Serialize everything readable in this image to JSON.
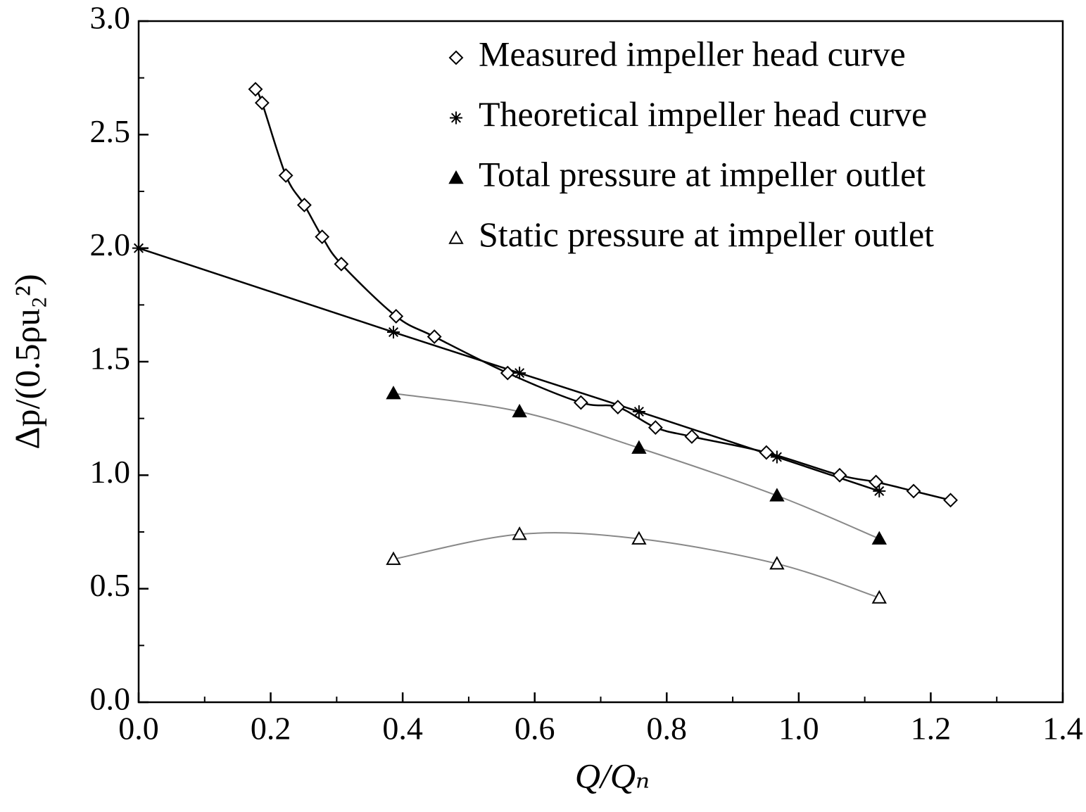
{
  "chart_data": {
    "type": "line",
    "x_label": "Q/Qₙ",
    "y_label": "Δp/(0.5ρu₂²)",
    "xlim": [
      0,
      1.4
    ],
    "ylim": [
      0,
      3
    ],
    "xticks": [
      {
        "value": 0,
        "label": "0.0"
      },
      0.2,
      0.4,
      0.6,
      0.8,
      {
        "value": 1,
        "label": "1.0"
      },
      1.2,
      1.4
    ],
    "yticks": [
      {
        "value": 0,
        "label": "0.0"
      },
      0.5,
      {
        "value": 1,
        "label": "1.0"
      },
      1.5,
      {
        "value": 2,
        "label": "2.0"
      },
      2.5,
      {
        "value": 3,
        "label": "3.0"
      }
    ],
    "xminorticks": [
      0.1,
      0.3,
      0.5,
      0.7,
      0.9,
      1.1,
      1.3
    ],
    "yminorticks": [
      0.25,
      0.75,
      1.25,
      1.75,
      2.25,
      2.75
    ],
    "grid": false,
    "legend": "upper right",
    "series": [
      {
        "name": "Measured impeller head curve",
        "color": "#000000",
        "line_color": "#000000",
        "marker": "diamond",
        "curve": "smooth",
        "x": [
          0.177,
          0.187,
          0.223,
          0.251,
          0.278,
          0.307,
          0.39,
          0.448,
          0.559,
          0.67,
          0.726,
          0.783,
          0.838,
          0.951,
          1.062,
          1.117,
          1.174,
          1.23
        ],
        "values": [
          2.7,
          2.64,
          2.32,
          2.19,
          2.05,
          1.93,
          1.7,
          1.61,
          1.45,
          1.32,
          1.3,
          1.21,
          1.17,
          1.1,
          1.0,
          0.97,
          0.93,
          0.89
        ]
      },
      {
        "name": "Theoretical impeller head curve",
        "color": "#000000",
        "line_color": "#000000",
        "marker": "asterisk",
        "curve": "straight",
        "x": [
          0,
          0.386,
          0.577,
          0.758,
          0.967,
          1.122
        ],
        "values": [
          2.0,
          1.63,
          1.45,
          1.28,
          1.08,
          0.93
        ]
      },
      {
        "name": "Total pressure at impeller outlet",
        "color": "#000000",
        "line_color": "#888888",
        "marker": "triangle-filled",
        "curve": "smooth",
        "x": [
          0.386,
          0.577,
          0.758,
          0.967,
          1.122
        ],
        "values": [
          1.36,
          1.28,
          1.12,
          0.91,
          0.72
        ]
      },
      {
        "name": "Static pressure at impeller outlet",
        "color": "#000000",
        "line_color": "#888888",
        "marker": "triangle-open",
        "curve": "smooth",
        "x": [
          0.386,
          0.577,
          0.758,
          0.967,
          1.122
        ],
        "values": [
          0.63,
          0.74,
          0.72,
          0.61,
          0.46
        ]
      }
    ]
  }
}
